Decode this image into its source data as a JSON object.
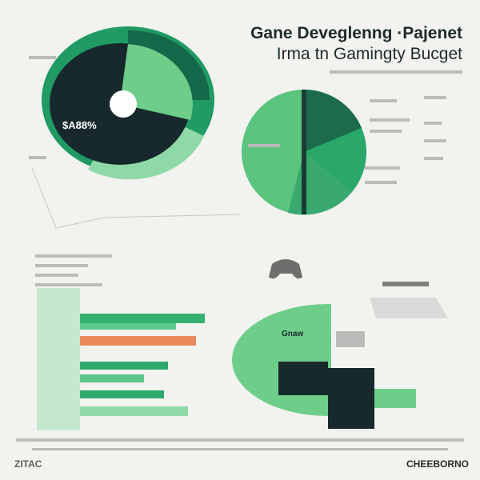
{
  "header": {
    "title_line1": "Gane Deveglenng ·Pajenet",
    "title_line2": "Irma tn Gamingty Bucget"
  },
  "donut": {
    "label": "$A88%"
  },
  "half_chart": {
    "label": "Gnaw"
  },
  "footer": {
    "left": "ZITAC",
    "right": "CHEEBORNO"
  }
}
